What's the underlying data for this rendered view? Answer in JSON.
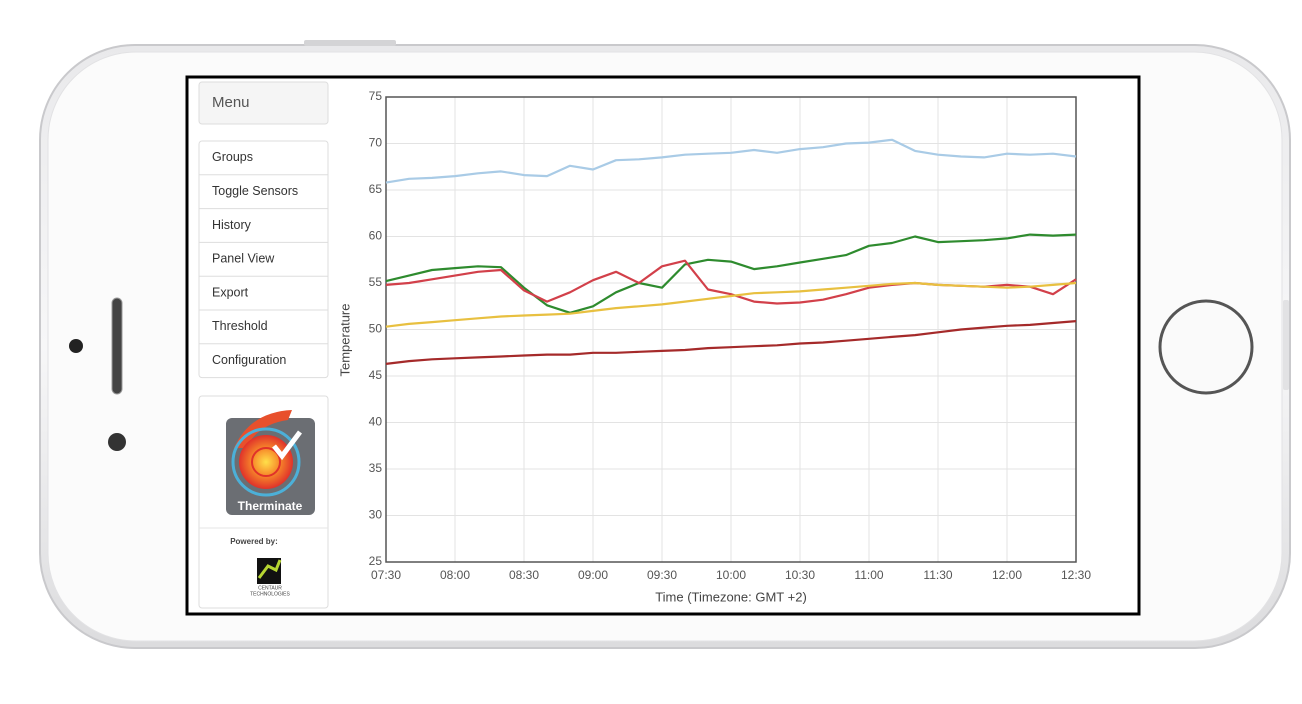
{
  "sidebar": {
    "menu_title": "Menu",
    "items": [
      "Groups",
      "Toggle Sensors",
      "History",
      "Panel View",
      "Export",
      "Threshold",
      "Configuration"
    ],
    "logo_text": "Therminate",
    "powered_by": "Powered by:",
    "partner": [
      "CENTAUR",
      "TECHNOLOGIES"
    ]
  },
  "chart_data": {
    "type": "line",
    "x_label": "Time (Timezone: GMT +2)",
    "y_label": "Temperature",
    "x": [
      "07:30",
      "07:40",
      "07:50",
      "08:00",
      "08:10",
      "08:20",
      "08:30",
      "08:40",
      "08:50",
      "09:00",
      "09:10",
      "09:20",
      "09:30",
      "09:40",
      "09:50",
      "10:00",
      "10:10",
      "10:20",
      "10:30",
      "10:40",
      "10:50",
      "11:00",
      "11:10",
      "11:20",
      "11:30",
      "11:40",
      "11:50",
      "12:00",
      "12:10",
      "12:20",
      "12:30"
    ],
    "xlim": [
      "07:30",
      "12:30"
    ],
    "xticks": [
      "07:30",
      "08:00",
      "08:30",
      "09:00",
      "09:30",
      "10:00",
      "10:30",
      "11:00",
      "11:30",
      "12:00",
      "12:30"
    ],
    "ylim": [
      25,
      75
    ],
    "yticks": [
      25,
      30,
      35,
      40,
      45,
      50,
      55,
      60,
      65,
      70,
      75
    ],
    "grid": true,
    "series": [
      {
        "color": "#a9cbe6",
        "values": [
          65.8,
          66.2,
          66.3,
          66.5,
          66.8,
          67.0,
          66.6,
          66.5,
          67.6,
          67.2,
          68.2,
          68.3,
          68.5,
          68.8,
          68.9,
          69.0,
          69.3,
          69.0,
          69.4,
          69.6,
          70.0,
          70.1,
          70.4,
          69.2,
          68.8,
          68.6,
          68.5,
          68.9,
          68.8,
          68.9,
          68.6
        ]
      },
      {
        "color": "#2e8b2e",
        "values": [
          55.2,
          55.8,
          56.4,
          56.6,
          56.8,
          56.7,
          54.5,
          52.6,
          51.8,
          52.5,
          54.0,
          55.0,
          54.5,
          57.0,
          57.5,
          57.3,
          56.5,
          56.8,
          57.2,
          57.6,
          58.0,
          59.0,
          59.3,
          60.0,
          59.4,
          59.5,
          59.6,
          59.8,
          60.2,
          60.1,
          60.2
        ]
      },
      {
        "color": "#d2404a",
        "values": [
          54.8,
          55.0,
          55.4,
          55.8,
          56.2,
          56.4,
          54.2,
          53.0,
          54.0,
          55.3,
          56.2,
          55.0,
          56.8,
          57.4,
          54.3,
          53.8,
          53.0,
          52.8,
          52.9,
          53.2,
          53.8,
          54.5,
          54.8,
          55.0,
          54.8,
          54.7,
          54.6,
          54.8,
          54.6,
          53.8,
          55.4
        ]
      },
      {
        "color": "#e8c040",
        "values": [
          50.3,
          50.6,
          50.8,
          51.0,
          51.2,
          51.4,
          51.5,
          51.6,
          51.7,
          52.0,
          52.3,
          52.5,
          52.7,
          53.0,
          53.3,
          53.6,
          53.9,
          54.0,
          54.1,
          54.3,
          54.5,
          54.7,
          54.9,
          55.0,
          54.8,
          54.7,
          54.6,
          54.5,
          54.6,
          54.8,
          55.0
        ]
      },
      {
        "color": "#a52a2a",
        "values": [
          46.3,
          46.6,
          46.8,
          46.9,
          47.0,
          47.1,
          47.2,
          47.3,
          47.3,
          47.5,
          47.5,
          47.6,
          47.7,
          47.8,
          48.0,
          48.1,
          48.2,
          48.3,
          48.5,
          48.6,
          48.8,
          49.0,
          49.2,
          49.4,
          49.7,
          50.0,
          50.2,
          50.4,
          50.5,
          50.7,
          50.9
        ]
      }
    ]
  }
}
